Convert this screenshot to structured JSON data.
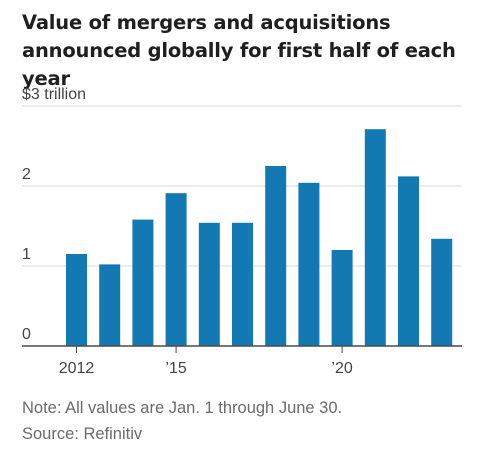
{
  "title": "Value of mergers and acquisitions announced globally for first half of each year",
  "notes": {
    "note": "Note: All values are Jan. 1 through June 30.",
    "source": "Source: Refinitiv"
  },
  "colors": {
    "bar": "#1279b3",
    "grid": "#d8d8d8",
    "baseline": "#4a4a4a"
  },
  "chart_data": {
    "type": "bar",
    "title": "Value of mergers and acquisitions announced globally for first half of each year",
    "xlabel": "",
    "ylabel": "",
    "categories": [
      "2012",
      "2013",
      "2014",
      "2015",
      "2016",
      "2017",
      "2018",
      "2019",
      "2020",
      "2021",
      "2022",
      "2023"
    ],
    "values": [
      1.15,
      1.02,
      1.58,
      1.91,
      1.54,
      1.54,
      2.25,
      2.04,
      1.2,
      2.71,
      2.12,
      1.34
    ],
    "ylim": [
      0,
      3
    ],
    "y_ticks": [
      {
        "value": 3,
        "label": "$3 trillion"
      },
      {
        "value": 2,
        "label": "2"
      },
      {
        "value": 1,
        "label": "1"
      },
      {
        "value": 0,
        "label": "0"
      }
    ],
    "x_tick_labels": [
      {
        "index": 0,
        "label": "2012"
      },
      {
        "index": 3,
        "label": "’15"
      },
      {
        "index": 8,
        "label": "’20"
      }
    ],
    "grid": true
  }
}
